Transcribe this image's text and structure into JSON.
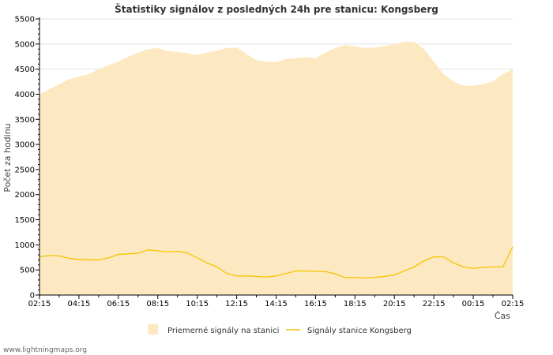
{
  "chart_data": {
    "type": "area",
    "title": "Štatistiky signálov z posledných 24h pre stanicu: Kongsberg",
    "xlabel": "Čas",
    "ylabel": "Počet za hodinu",
    "ylim": [
      0,
      5500
    ],
    "yticks": [
      0,
      500,
      1000,
      1500,
      2000,
      2500,
      3000,
      3500,
      4000,
      4500,
      5000,
      5500
    ],
    "xticks": [
      "02:15",
      "04:15",
      "06:15",
      "08:15",
      "10:15",
      "12:15",
      "14:15",
      "16:15",
      "18:15",
      "20:15",
      "22:15",
      "00:15",
      "02:15"
    ],
    "x_hours": [
      0,
      0.5,
      1,
      1.5,
      2,
      2.5,
      3,
      3.5,
      4,
      4.5,
      5,
      5.5,
      6,
      6.5,
      7,
      7.5,
      8,
      8.5,
      9,
      9.5,
      10,
      10.5,
      11,
      11.5,
      12,
      12.5,
      13,
      13.5,
      14,
      14.5,
      15,
      15.5,
      16,
      16.5,
      17,
      17.5,
      18,
      18.5,
      19,
      19.5,
      20,
      20.5,
      21,
      21.5,
      22,
      22.5,
      23,
      23.5,
      24
    ],
    "grid": true,
    "legend_position": "bottom",
    "series": [
      {
        "name": "Priemerné signály na stanici",
        "style": "area",
        "color": "#fde9c1",
        "values": [
          4000,
          4100,
          4200,
          4300,
          4350,
          4400,
          4500,
          4580,
          4650,
          4750,
          4820,
          4900,
          4920,
          4860,
          4840,
          4820,
          4780,
          4830,
          4870,
          4920,
          4930,
          4800,
          4680,
          4650,
          4640,
          4700,
          4720,
          4740,
          4720,
          4830,
          4920,
          4980,
          4950,
          4920,
          4930,
          4960,
          4990,
          5050,
          5040,
          4900,
          4650,
          4400,
          4250,
          4170,
          4170,
          4200,
          4260,
          4400,
          4500
        ]
      },
      {
        "name": "Signály stanice Kongsberg",
        "style": "line",
        "color": "#f5c400",
        "values": [
          760,
          790,
          780,
          730,
          710,
          700,
          700,
          740,
          810,
          820,
          830,
          900,
          880,
          860,
          870,
          840,
          740,
          640,
          560,
          430,
          380,
          380,
          370,
          360,
          380,
          430,
          480,
          480,
          470,
          470,
          420,
          350,
          350,
          340,
          350,
          370,
          400,
          480,
          560,
          680,
          760,
          760,
          640,
          560,
          530,
          550,
          560,
          560,
          960
        ]
      }
    ]
  },
  "footer": "www.lightningmaps.org"
}
